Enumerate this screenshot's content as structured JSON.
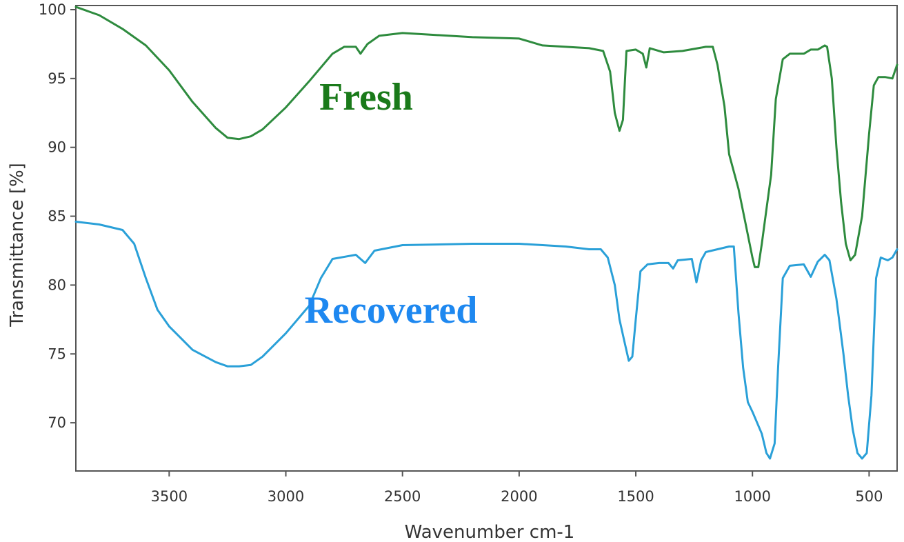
{
  "chart_data": {
    "type": "line",
    "xlabel": "Wavenumber cm-1",
    "ylabel": "Transmittance [%]",
    "xlim": [
      3900,
      380
    ],
    "ylim": [
      66.5,
      100.3
    ],
    "x_reversed": true,
    "grid": false,
    "x_ticks": [
      3500,
      3000,
      2500,
      2000,
      1500,
      1000,
      500
    ],
    "y_ticks": [
      70,
      75,
      80,
      85,
      90,
      95,
      100
    ],
    "series": [
      {
        "name": "Fresh",
        "color": "#2e8b3e",
        "label_color": "#1a7a1a",
        "points": [
          [
            3900,
            100.2
          ],
          [
            3800,
            99.6
          ],
          [
            3700,
            98.6
          ],
          [
            3600,
            97.4
          ],
          [
            3500,
            95.6
          ],
          [
            3400,
            93.3
          ],
          [
            3300,
            91.4
          ],
          [
            3250,
            90.7
          ],
          [
            3200,
            90.6
          ],
          [
            3150,
            90.8
          ],
          [
            3100,
            91.3
          ],
          [
            3000,
            92.9
          ],
          [
            2900,
            94.8
          ],
          [
            2800,
            96.8
          ],
          [
            2750,
            97.3
          ],
          [
            2700,
            97.3
          ],
          [
            2680,
            96.8
          ],
          [
            2650,
            97.5
          ],
          [
            2600,
            98.1
          ],
          [
            2500,
            98.3
          ],
          [
            2400,
            98.2
          ],
          [
            2200,
            98.0
          ],
          [
            2000,
            97.9
          ],
          [
            1900,
            97.4
          ],
          [
            1800,
            97.3
          ],
          [
            1700,
            97.2
          ],
          [
            1640,
            97.0
          ],
          [
            1610,
            95.5
          ],
          [
            1590,
            92.5
          ],
          [
            1570,
            91.2
          ],
          [
            1555,
            92.0
          ],
          [
            1540,
            97.0
          ],
          [
            1500,
            97.1
          ],
          [
            1470,
            96.8
          ],
          [
            1455,
            95.8
          ],
          [
            1440,
            97.2
          ],
          [
            1380,
            96.9
          ],
          [
            1300,
            97.0
          ],
          [
            1200,
            97.3
          ],
          [
            1170,
            97.3
          ],
          [
            1150,
            96.0
          ],
          [
            1120,
            93.0
          ],
          [
            1100,
            89.5
          ],
          [
            1060,
            87.0
          ],
          [
            1030,
            84.5
          ],
          [
            1000,
            82.0
          ],
          [
            990,
            81.3
          ],
          [
            975,
            81.3
          ],
          [
            960,
            83.0
          ],
          [
            940,
            85.5
          ],
          [
            920,
            88.0
          ],
          [
            900,
            93.5
          ],
          [
            870,
            96.4
          ],
          [
            840,
            96.8
          ],
          [
            780,
            96.8
          ],
          [
            750,
            97.1
          ],
          [
            720,
            97.1
          ],
          [
            690,
            97.4
          ],
          [
            680,
            97.3
          ],
          [
            660,
            95.0
          ],
          [
            640,
            90.0
          ],
          [
            620,
            86.0
          ],
          [
            600,
            83.0
          ],
          [
            580,
            81.8
          ],
          [
            560,
            82.2
          ],
          [
            530,
            85.0
          ],
          [
            500,
            91.0
          ],
          [
            480,
            94.5
          ],
          [
            460,
            95.1
          ],
          [
            430,
            95.1
          ],
          [
            400,
            95.0
          ],
          [
            380,
            96.0
          ]
        ]
      },
      {
        "name": "Recovered",
        "color": "#2aa0d8",
        "label_color": "#1e88f0",
        "points": [
          [
            3900,
            84.6
          ],
          [
            3800,
            84.4
          ],
          [
            3700,
            84.0
          ],
          [
            3650,
            83.0
          ],
          [
            3600,
            80.5
          ],
          [
            3550,
            78.2
          ],
          [
            3500,
            77.0
          ],
          [
            3400,
            75.3
          ],
          [
            3300,
            74.4
          ],
          [
            3250,
            74.1
          ],
          [
            3200,
            74.1
          ],
          [
            3150,
            74.2
          ],
          [
            3100,
            74.8
          ],
          [
            3000,
            76.5
          ],
          [
            2900,
            78.5
          ],
          [
            2850,
            80.5
          ],
          [
            2800,
            81.9
          ],
          [
            2700,
            82.2
          ],
          [
            2660,
            81.6
          ],
          [
            2620,
            82.5
          ],
          [
            2500,
            82.9
          ],
          [
            2200,
            83.0
          ],
          [
            2000,
            83.0
          ],
          [
            1800,
            82.8
          ],
          [
            1700,
            82.6
          ],
          [
            1650,
            82.6
          ],
          [
            1620,
            82.0
          ],
          [
            1590,
            80.0
          ],
          [
            1570,
            77.5
          ],
          [
            1550,
            76.0
          ],
          [
            1530,
            74.5
          ],
          [
            1515,
            74.8
          ],
          [
            1500,
            77.5
          ],
          [
            1480,
            81.0
          ],
          [
            1450,
            81.5
          ],
          [
            1400,
            81.6
          ],
          [
            1360,
            81.6
          ],
          [
            1340,
            81.2
          ],
          [
            1320,
            81.8
          ],
          [
            1260,
            81.9
          ],
          [
            1240,
            80.2
          ],
          [
            1220,
            81.8
          ],
          [
            1200,
            82.4
          ],
          [
            1150,
            82.6
          ],
          [
            1100,
            82.8
          ],
          [
            1080,
            82.8
          ],
          [
            1060,
            78.0
          ],
          [
            1040,
            74.0
          ],
          [
            1020,
            71.5
          ],
          [
            1000,
            70.8
          ],
          [
            980,
            70.0
          ],
          [
            960,
            69.2
          ],
          [
            940,
            67.8
          ],
          [
            925,
            67.4
          ],
          [
            905,
            68.5
          ],
          [
            890,
            74.0
          ],
          [
            870,
            80.5
          ],
          [
            840,
            81.4
          ],
          [
            780,
            81.5
          ],
          [
            750,
            80.6
          ],
          [
            720,
            81.7
          ],
          [
            690,
            82.2
          ],
          [
            670,
            81.8
          ],
          [
            640,
            79.0
          ],
          [
            610,
            75.0
          ],
          [
            590,
            72.0
          ],
          [
            570,
            69.5
          ],
          [
            550,
            67.8
          ],
          [
            530,
            67.4
          ],
          [
            510,
            67.8
          ],
          [
            490,
            72.0
          ],
          [
            470,
            80.5
          ],
          [
            450,
            82.0
          ],
          [
            420,
            81.8
          ],
          [
            400,
            82.0
          ],
          [
            380,
            82.6
          ]
        ]
      }
    ]
  }
}
